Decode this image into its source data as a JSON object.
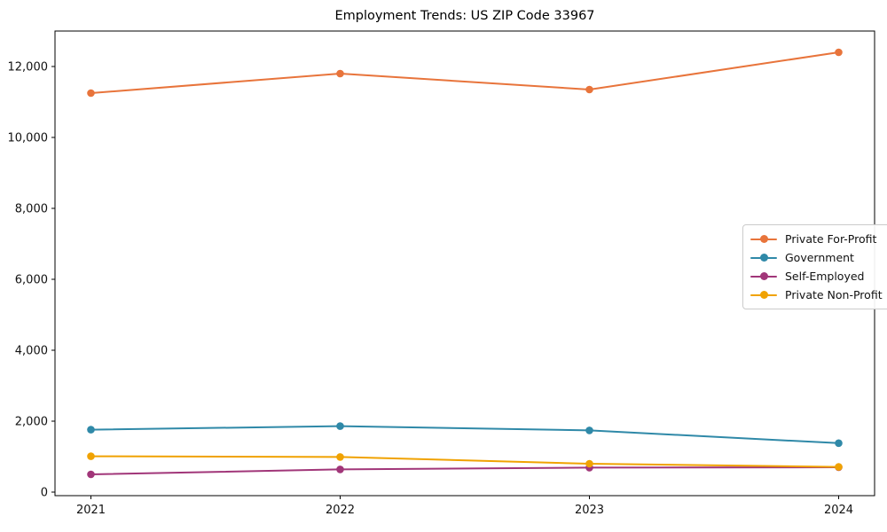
{
  "title": "Employment Trends: US ZIP Code 33967",
  "chart_data": {
    "type": "line",
    "title": "Employment Trends: US ZIP Code 33967",
    "xlabel": "",
    "ylabel": "",
    "categories": [
      "2021",
      "2022",
      "2023",
      "2024"
    ],
    "series": [
      {
        "name": "Private For-Profit",
        "color": "#E8743B",
        "values": [
          11250,
          11800,
          11350,
          12400
        ]
      },
      {
        "name": "Government",
        "color": "#2F89A8",
        "values": [
          1760,
          1860,
          1740,
          1380
        ]
      },
      {
        "name": "Self-Employed",
        "color": "#A13679",
        "values": [
          500,
          640,
          690,
          700
        ]
      },
      {
        "name": "Private Non-Profit",
        "color": "#F0A202",
        "values": [
          1010,
          990,
          800,
          710
        ]
      }
    ],
    "ylim": [
      -100,
      13000
    ],
    "yticks": [
      0,
      2000,
      4000,
      6000,
      8000,
      10000,
      12000
    ],
    "ytick_labels": [
      "0",
      "2,000",
      "4,000",
      "6,000",
      "8,000",
      "10,000",
      "12,000"
    ],
    "grid": false,
    "marker": "circle",
    "legend_position": "center right",
    "axis_color": "#000000"
  }
}
